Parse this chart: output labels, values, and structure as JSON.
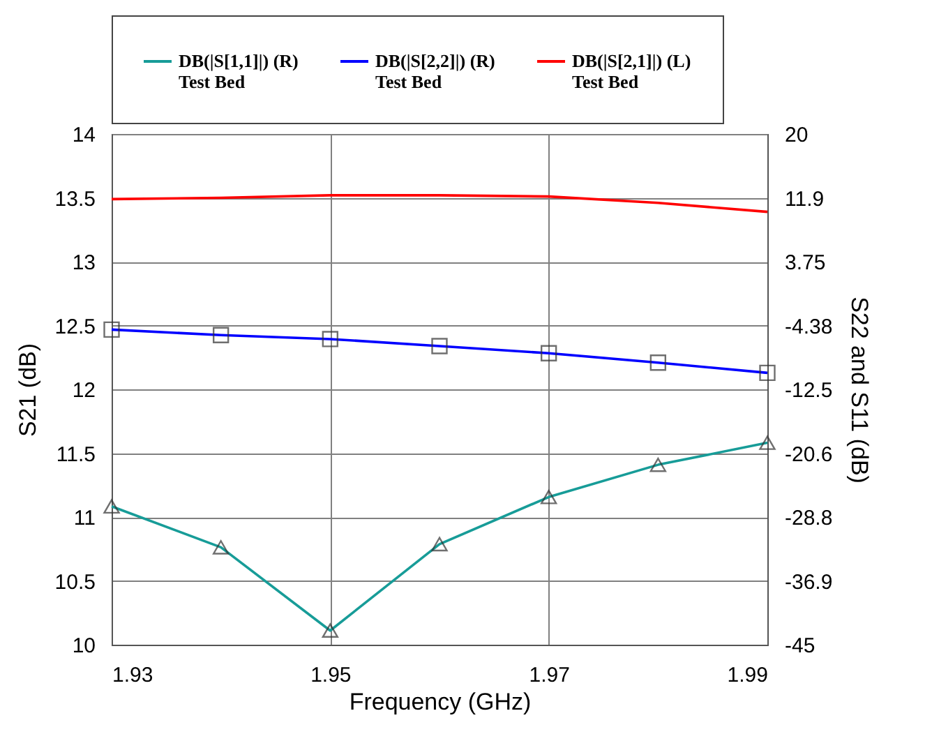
{
  "chart_data": {
    "type": "line",
    "xlabel": "Frequency (GHz)",
    "ylabel": "S21 (dB)",
    "y2label": "S22 and S11 (dB)",
    "x": [
      1.93,
      1.94,
      1.95,
      1.96,
      1.97,
      1.98,
      1.99
    ],
    "xlim": [
      1.93,
      1.99
    ],
    "xticks": [
      1.93,
      1.95,
      1.97,
      1.99
    ],
    "ylim": [
      10,
      14
    ],
    "yticks": [
      10,
      10.5,
      11,
      11.5,
      12,
      12.5,
      13,
      13.5,
      14
    ],
    "y2lim": [
      -45,
      20
    ],
    "y2ticks": [
      {
        "value": -45,
        "label": "-45"
      },
      {
        "value": -36.875,
        "label": "-36.9"
      },
      {
        "value": -28.75,
        "label": "-28.8"
      },
      {
        "value": -20.625,
        "label": "-20.6"
      },
      {
        "value": -12.5,
        "label": "-12.5"
      },
      {
        "value": -4.375,
        "label": "-4.38"
      },
      {
        "value": 3.75,
        "label": "3.75"
      },
      {
        "value": 11.875,
        "label": "11.9"
      },
      {
        "value": 20,
        "label": "20"
      }
    ],
    "grid": true,
    "legend": "top",
    "line_style": "solid",
    "series": [
      {
        "name": "DB(|S[1,1]|) (R)\nTest Bed",
        "color": "#179c98",
        "axis": "y2",
        "marker": "triangle",
        "values": [
          -27.4,
          -32.6,
          -43.2,
          -32.2,
          -26.2,
          -22.1,
          -19.3
        ]
      },
      {
        "name": "DB(|S[2,2]|) (R)\nTest Bed",
        "color": "#0000ff",
        "axis": "y2",
        "marker": "square",
        "values": [
          -4.9,
          -5.6,
          -6.1,
          -7.0,
          -7.9,
          -9.1,
          -10.4
        ]
      },
      {
        "name": "DB(|S[2,1]|) (L)\nTest Bed",
        "color": "#ff0000",
        "axis": "y",
        "marker": "none",
        "values": [
          13.49,
          13.5,
          13.52,
          13.52,
          13.51,
          13.46,
          13.39
        ]
      }
    ]
  }
}
